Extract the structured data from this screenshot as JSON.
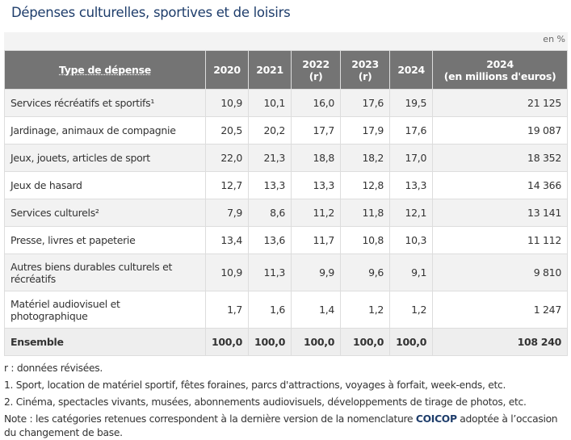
{
  "title": "Dépenses culturelles, sportives et de loisirs",
  "unit": "en %",
  "headers": [
    "Type de dépense",
    "2020",
    "2021",
    "2022 (r)",
    "2023 (r)",
    "2024",
    "2024",
    "(en millions d'euros)"
  ],
  "rows": [
    {
      "label": "Services récréatifs et sportifs¹",
      "v": [
        "10,9",
        "10,1",
        "16,0",
        "17,6",
        "19,5",
        "21 125"
      ]
    },
    {
      "label": "Jardinage, animaux de compagnie",
      "v": [
        "20,5",
        "20,2",
        "17,7",
        "17,9",
        "17,6",
        "19 087"
      ]
    },
    {
      "label": "Jeux, jouets, articles de sport",
      "v": [
        "22,0",
        "21,3",
        "18,8",
        "18,2",
        "17,0",
        "18 352"
      ]
    },
    {
      "label": "Jeux de hasard",
      "v": [
        "12,7",
        "13,3",
        "13,3",
        "12,8",
        "13,3",
        "14 366"
      ]
    },
    {
      "label": "Services culturels²",
      "v": [
        "7,9",
        "8,6",
        "11,2",
        "11,8",
        "12,1",
        "13 141"
      ]
    },
    {
      "label": "Presse, livres et papeterie",
      "v": [
        "13,4",
        "13,6",
        "11,7",
        "10,8",
        "10,3",
        "11 112"
      ]
    },
    {
      "label": "Autres biens durables culturels et récréatifs",
      "v": [
        "10,9",
        "11,3",
        "9,9",
        "9,6",
        "9,1",
        "9 810"
      ]
    },
    {
      "label": "Matériel audiovisuel et photographique",
      "v": [
        "1,7",
        "1,6",
        "1,4",
        "1,2",
        "1,2",
        "1 247"
      ]
    },
    {
      "label": "Ensemble",
      "v": [
        "100,0",
        "100,0",
        "100,0",
        "100,0",
        "100,0",
        "108 240"
      ]
    }
  ],
  "notes": {
    "r": "r : données révisées.",
    "n1": "1. Sport, location de matériel sportif, fêtes foraines, parcs d'attractions, voyages à forfait, week-ends, etc.",
    "n2": "2. Cinéma, spectacles vivants, musées, abonnements audiovisuels, développements de tirage de photos, etc.",
    "n3a": "Note : les catégories retenues correspondent à la dernière version de la nomenclature ",
    "n3link": "COICOP",
    "n3b": " adoptée à l’occasion du changement de base."
  }
}
